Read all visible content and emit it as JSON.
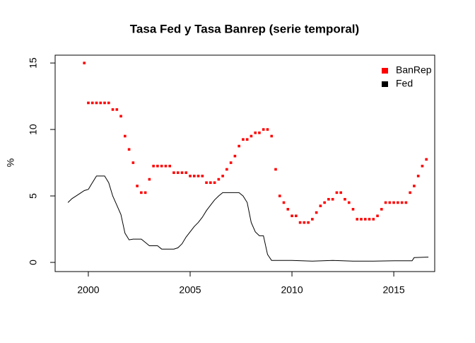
{
  "chart_data": {
    "type": "line",
    "title": "Tasa Fed y Tasa Banrep (serie temporal)",
    "y_label": "%",
    "xlim": [
      1998.37,
      2017.01
    ],
    "xticks": [
      2000,
      2005,
      2010,
      2015
    ],
    "ylim": [
      -0.69,
      15.59
    ],
    "yticks": [
      0,
      5,
      10,
      15
    ],
    "legend": "top-right",
    "series": [
      {
        "name": "BanRep",
        "color": "#ff0000",
        "mode": "points",
        "x": [
          1999.8,
          2000.0,
          2000.2,
          2000.4,
          2000.6,
          2000.8,
          2001.0,
          2001.2,
          2001.4,
          2001.6,
          2001.8,
          2002.0,
          2002.2,
          2002.4,
          2002.6,
          2002.8,
          2003.0,
          2003.2,
          2003.4,
          2003.6,
          2003.8,
          2004.0,
          2004.2,
          2004.4,
          2004.6,
          2004.8,
          2005.0,
          2005.2,
          2005.4,
          2005.6,
          2005.8,
          2006.0,
          2006.2,
          2006.4,
          2006.6,
          2006.8,
          2007.0,
          2007.2,
          2007.4,
          2007.6,
          2007.8,
          2008.0,
          2008.2,
          2008.4,
          2008.6,
          2008.8,
          2009.0,
          2009.2,
          2009.4,
          2009.6,
          2009.8,
          2010.0,
          2010.2,
          2010.4,
          2010.6,
          2010.8,
          2011.0,
          2011.2,
          2011.4,
          2011.6,
          2011.8,
          2012.0,
          2012.2,
          2012.4,
          2012.6,
          2012.8,
          2013.0,
          2013.2,
          2013.4,
          2013.6,
          2013.8,
          2014.0,
          2014.2,
          2014.4,
          2014.6,
          2014.8,
          2015.0,
          2015.2,
          2015.4,
          2015.6,
          2015.8,
          2016.0,
          2016.2,
          2016.4,
          2016.6
        ],
        "values": [
          15,
          12,
          12,
          12,
          12,
          12,
          12,
          11.5,
          11.5,
          11,
          9.5,
          8.5,
          7.5,
          5.75,
          5.25,
          5.25,
          6.25,
          7.25,
          7.25,
          7.25,
          7.25,
          7.25,
          6.75,
          6.75,
          6.75,
          6.75,
          6.5,
          6.5,
          6.5,
          6.5,
          6,
          6,
          6,
          6.25,
          6.5,
          7,
          7.5,
          8,
          8.75,
          9.25,
          9.25,
          9.5,
          9.75,
          9.75,
          10,
          10,
          9.5,
          7,
          5,
          4.5,
          4,
          3.5,
          3.5,
          3,
          3,
          3,
          3.25,
          3.75,
          4.25,
          4.5,
          4.75,
          4.75,
          5.25,
          5.25,
          4.75,
          4.5,
          4,
          3.25,
          3.25,
          3.25,
          3.25,
          3.25,
          3.5,
          4,
          4.5,
          4.5,
          4.5,
          4.5,
          4.5,
          4.5,
          5.25,
          5.75,
          6.5,
          7.25,
          7.75
        ]
      },
      {
        "name": "Fed",
        "color": "#000000",
        "mode": "line",
        "x": [
          1999.0,
          1999.2,
          1999.4,
          1999.6,
          1999.8,
          2000.0,
          2000.2,
          2000.4,
          2000.6,
          2000.8,
          2001.0,
          2001.2,
          2001.4,
          2001.6,
          2001.8,
          2002.0,
          2002.2,
          2002.4,
          2002.6,
          2002.8,
          2003.0,
          2003.2,
          2003.4,
          2003.6,
          2003.8,
          2004.0,
          2004.2,
          2004.4,
          2004.6,
          2004.8,
          2005.0,
          2005.2,
          2005.4,
          2005.6,
          2005.8,
          2006.0,
          2006.2,
          2006.4,
          2006.6,
          2006.8,
          2007.0,
          2007.2,
          2007.4,
          2007.6,
          2007.8,
          2008.0,
          2008.2,
          2008.4,
          2008.6,
          2008.8,
          2009.0,
          2009.5,
          2010.0,
          2011.0,
          2012.0,
          2013.0,
          2014.0,
          2015.0,
          2015.9,
          2016.0,
          2016.7
        ],
        "values": [
          4.5,
          4.8,
          5.0,
          5.2,
          5.4,
          5.5,
          6.0,
          6.5,
          6.5,
          6.5,
          6.0,
          5.0,
          4.3,
          3.6,
          2.2,
          1.7,
          1.75,
          1.75,
          1.75,
          1.5,
          1.25,
          1.25,
          1.25,
          1.0,
          1.0,
          1.0,
          1.0,
          1.1,
          1.4,
          1.9,
          2.3,
          2.7,
          3.0,
          3.4,
          3.9,
          4.3,
          4.7,
          5.0,
          5.25,
          5.25,
          5.25,
          5.25,
          5.25,
          5.0,
          4.5,
          3.0,
          2.3,
          2.0,
          2.0,
          0.6,
          0.15,
          0.15,
          0.15,
          0.1,
          0.15,
          0.1,
          0.1,
          0.12,
          0.12,
          0.36,
          0.4
        ]
      }
    ]
  }
}
